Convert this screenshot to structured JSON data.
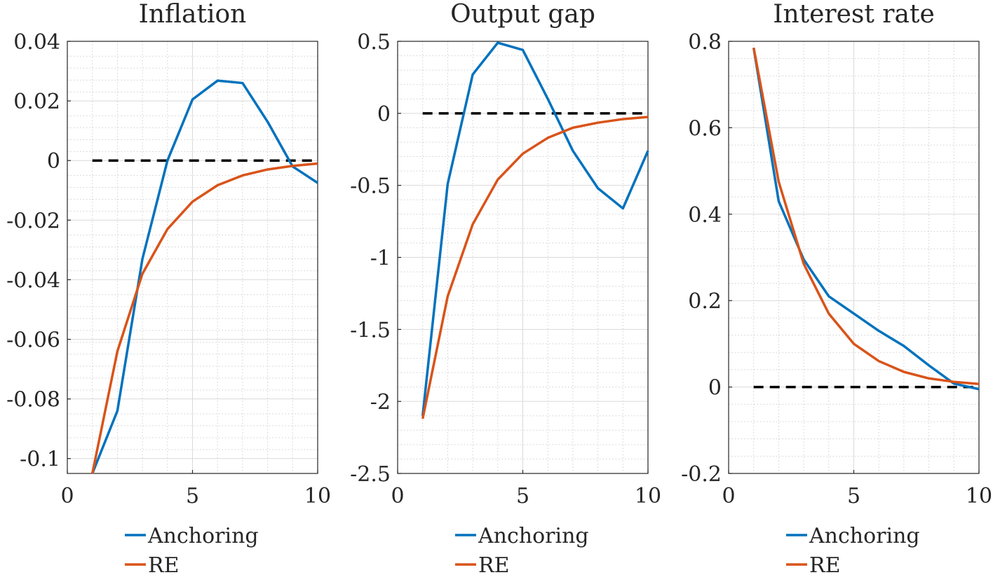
{
  "chart_data": [
    {
      "type": "line",
      "title": "Inflation",
      "x": [
        1,
        2,
        3,
        4,
        5,
        6,
        7,
        8,
        9,
        10
      ],
      "series": [
        {
          "name": "Anchoring",
          "color": "#0072BD",
          "values": [
            -0.105,
            -0.084,
            -0.033,
            0.0,
            0.0205,
            0.0268,
            0.026,
            0.013,
            -0.002,
            -0.0075
          ]
        },
        {
          "name": "RE",
          "color": "#D95319",
          "values": [
            -0.105,
            -0.064,
            -0.038,
            -0.023,
            -0.0138,
            -0.0083,
            -0.005,
            -0.003,
            -0.0018,
            -0.001
          ]
        }
      ],
      "reference_line": {
        "y": 0,
        "x_range": [
          1,
          10
        ],
        "style": "dashed",
        "color": "#000000"
      },
      "xlim": [
        0,
        10
      ],
      "ylim": [
        -0.105,
        0.04
      ],
      "x_ticks": [
        0,
        5,
        10
      ],
      "x_tick_labels": [
        "0",
        "5",
        "10"
      ],
      "y_ticks": [
        -0.1,
        -0.08,
        -0.06,
        -0.04,
        -0.02,
        0,
        0.02,
        0.04
      ],
      "y_tick_labels": [
        "-0.1",
        "-0.08",
        "-0.06",
        "-0.04",
        "-0.02",
        "0",
        "0.02",
        "0.04"
      ],
      "y_minor_step": 0.004,
      "grid": true,
      "minor_grid": true,
      "legend": "below"
    },
    {
      "type": "line",
      "title": "Output gap",
      "x": [
        1,
        2,
        3,
        4,
        5,
        6,
        7,
        8,
        9,
        10
      ],
      "series": [
        {
          "name": "Anchoring",
          "color": "#0072BD",
          "values": [
            -2.1,
            -0.49,
            0.27,
            0.49,
            0.44,
            0.1,
            -0.26,
            -0.52,
            -0.66,
            -0.26
          ]
        },
        {
          "name": "RE",
          "color": "#D95319",
          "values": [
            -2.12,
            -1.27,
            -0.77,
            -0.46,
            -0.28,
            -0.17,
            -0.1,
            -0.065,
            -0.04,
            -0.025
          ]
        }
      ],
      "reference_line": {
        "y": 0,
        "x_range": [
          1,
          10
        ],
        "style": "dashed",
        "color": "#000000"
      },
      "xlim": [
        0,
        10
      ],
      "ylim": [
        -2.5,
        0.5
      ],
      "x_ticks": [
        0,
        5,
        10
      ],
      "x_tick_labels": [
        "0",
        "5",
        "10"
      ],
      "y_ticks": [
        -2.5,
        -2,
        -1.5,
        -1,
        -0.5,
        0,
        0.5
      ],
      "y_tick_labels": [
        "-2.5",
        "-2",
        "-1.5",
        "-1",
        "-0.5",
        "0",
        "0.5"
      ],
      "y_minor_step": 0.1,
      "grid": true,
      "minor_grid": true,
      "legend": "below"
    },
    {
      "type": "line",
      "title": "Interest rate",
      "x": [
        1,
        2,
        3,
        4,
        5,
        6,
        7,
        8,
        9,
        10
      ],
      "series": [
        {
          "name": "Anchoring",
          "color": "#0072BD",
          "values": [
            0.785,
            0.43,
            0.295,
            0.21,
            0.17,
            0.13,
            0.095,
            0.05,
            0.008,
            -0.005
          ]
        },
        {
          "name": "RE",
          "color": "#D95319",
          "values": [
            0.785,
            0.475,
            0.285,
            0.17,
            0.1,
            0.06,
            0.035,
            0.02,
            0.012,
            0.007
          ]
        }
      ],
      "reference_line": {
        "y": 0,
        "x_range": [
          1,
          10
        ],
        "style": "dashed",
        "color": "#000000"
      },
      "xlim": [
        0,
        10
      ],
      "ylim": [
        -0.2,
        0.8
      ],
      "x_ticks": [
        0,
        5,
        10
      ],
      "x_tick_labels": [
        "0",
        "5",
        "10"
      ],
      "y_ticks": [
        -0.2,
        0,
        0.2,
        0.4,
        0.6,
        0.8
      ],
      "y_tick_labels": [
        "-0.2",
        "0",
        "0.2",
        "0.4",
        "0.6",
        "0.8"
      ],
      "y_minor_step": 0.04,
      "grid": true,
      "minor_grid": true,
      "legend": "below"
    }
  ]
}
